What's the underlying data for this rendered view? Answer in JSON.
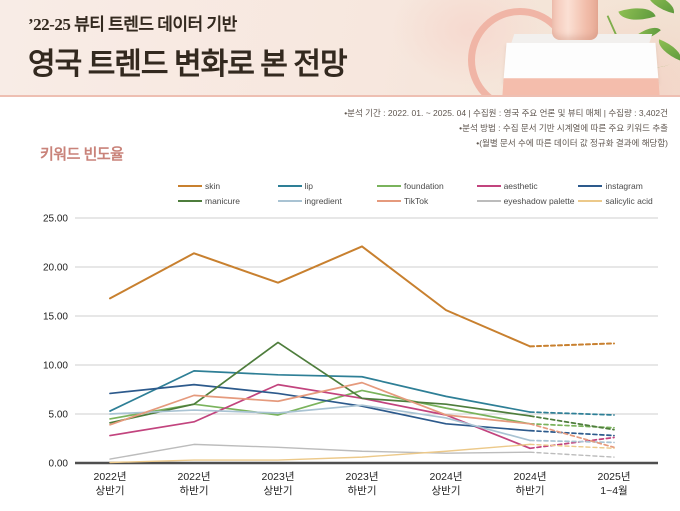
{
  "banner": {
    "subtitle": "’22-25 뷰티 트렌드 데이터 기반",
    "title": "영국 트렌드 변화로 본 전망"
  },
  "meta": {
    "line1": "•분석 기간 : 2022. 01. ~ 2025. 04   |   수집원 : 영국 주요 언론 및 뷰티 매체   |   수집량 : 3,402건",
    "line2": "•분석 방법 : 수집 문서 기반 시계열에 따른 주요 키워드 추출",
    "line3": "•(월별 문서 수에 따른 데이터 값 정규화 결과에 해당함)"
  },
  "section_title": "키워드 빈도율",
  "chart_data": {
    "type": "line",
    "title": "키워드 빈도율",
    "categories": [
      "2022년 상반기",
      "2022년 하반기",
      "2023년 상반기",
      "2023년 하반기",
      "2024년 상반기",
      "2024년 하반기",
      "2025년 1~4월"
    ],
    "ylim": [
      0,
      25
    ],
    "ytick_step": 5,
    "ytick_labels": [
      "0.00",
      "5.00",
      "10.00",
      "15.00",
      "20.00",
      "25.00"
    ],
    "grid": true,
    "legend_position": "top",
    "note": "last segment (2024 하반기 → 2025 1~4월) is dashed forecast",
    "series": [
      {
        "name": "skin",
        "color": "#c8802f",
        "width": 2,
        "values": [
          16.8,
          21.4,
          18.4,
          22.1,
          15.6,
          11.9,
          12.2
        ]
      },
      {
        "name": "lip",
        "color": "#2e7f96",
        "width": 1.7,
        "values": [
          5.3,
          9.4,
          9.0,
          8.8,
          6.8,
          5.2,
          4.9
        ]
      },
      {
        "name": "foundation",
        "color": "#7ab35c",
        "width": 1.7,
        "values": [
          4.5,
          6.0,
          4.9,
          7.4,
          5.6,
          4.0,
          3.6
        ]
      },
      {
        "name": "aesthetic",
        "color": "#c2447e",
        "width": 1.7,
        "values": [
          2.8,
          4.2,
          8.0,
          6.6,
          4.9,
          1.5,
          2.6
        ]
      },
      {
        "name": "instagram",
        "color": "#2d5a8c",
        "width": 1.7,
        "values": [
          7.1,
          8.0,
          7.1,
          5.8,
          4.0,
          3.3,
          2.8
        ]
      },
      {
        "name": "manicure",
        "color": "#4e7d3c",
        "width": 1.7,
        "values": [
          4.1,
          6.0,
          12.3,
          6.6,
          6.0,
          4.8,
          3.4
        ]
      },
      {
        "name": "ingredient",
        "color": "#a9c3d3",
        "width": 1.7,
        "values": [
          5.0,
          5.4,
          5.1,
          5.9,
          4.6,
          2.3,
          2.1
        ]
      },
      {
        "name": "TikTok",
        "color": "#e59a7d",
        "width": 1.7,
        "values": [
          3.9,
          6.9,
          6.3,
          8.2,
          4.9,
          4.0,
          1.6
        ]
      },
      {
        "name": "eyeshadow palette",
        "color": "#bcbcbc",
        "width": 1.4,
        "values": [
          0.4,
          1.9,
          1.6,
          1.2,
          1.0,
          1.1,
          0.6
        ]
      },
      {
        "name": "salicylic acid",
        "color": "#ecc98a",
        "width": 1.4,
        "values": [
          0.05,
          0.3,
          0.3,
          0.6,
          1.2,
          1.9,
          1.5
        ]
      }
    ]
  }
}
